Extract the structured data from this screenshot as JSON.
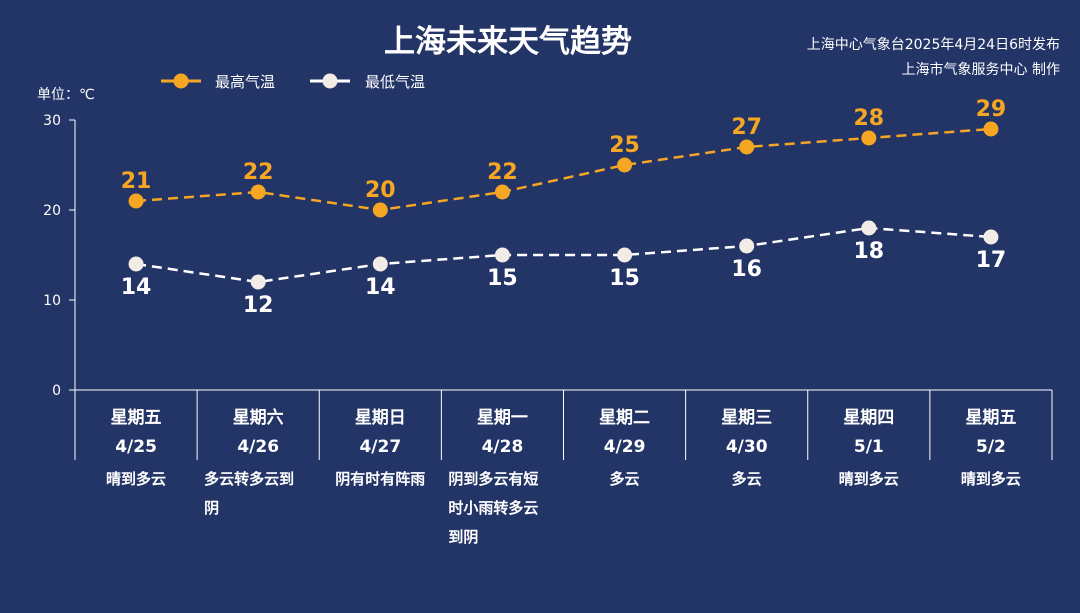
{
  "header": {
    "title": "上海未来天气趋势",
    "publisher_line1": "上海中心气象台2025年4月24日6时发布",
    "publisher_line2": "上海市气象服务中心 制作"
  },
  "colors": {
    "background": "#233466",
    "high_series": "#F5A623",
    "low_series": "#FFFFFF",
    "low_marker": "#F3ECE6",
    "axis": "#FFFFFF",
    "text": "#FFFFFF"
  },
  "chart_data": {
    "type": "line",
    "title": "上海未来天气趋势",
    "ylabel": "单位：℃",
    "ylim": [
      0,
      30
    ],
    "yticks": [
      0,
      10,
      20,
      30
    ],
    "grid": false,
    "legend_position": "top-left",
    "line_style": "dashed",
    "data_labels": true,
    "categories": [
      {
        "weekday": "星期五",
        "date": "4/25",
        "weather": [
          "晴到多云"
        ]
      },
      {
        "weekday": "星期六",
        "date": "4/26",
        "weather": [
          "多云转多云到",
          "阴"
        ]
      },
      {
        "weekday": "星期日",
        "date": "4/27",
        "weather": [
          "阴有时有阵雨"
        ]
      },
      {
        "weekday": "星期一",
        "date": "4/28",
        "weather": [
          "阴到多云有短",
          "时小雨转多云",
          "到阴"
        ]
      },
      {
        "weekday": "星期二",
        "date": "4/29",
        "weather": [
          "多云"
        ]
      },
      {
        "weekday": "星期三",
        "date": "4/30",
        "weather": [
          "多云"
        ]
      },
      {
        "weekday": "星期四",
        "date": "5/1",
        "weather": [
          "晴到多云"
        ]
      },
      {
        "weekday": "星期五",
        "date": "5/2",
        "weather": [
          "晴到多云"
        ]
      }
    ],
    "series": [
      {
        "name": "最高气温",
        "values": [
          21,
          22,
          20,
          22,
          25,
          27,
          28,
          29
        ]
      },
      {
        "name": "最低气温",
        "values": [
          14,
          12,
          14,
          15,
          15,
          16,
          18,
          17
        ]
      }
    ]
  }
}
